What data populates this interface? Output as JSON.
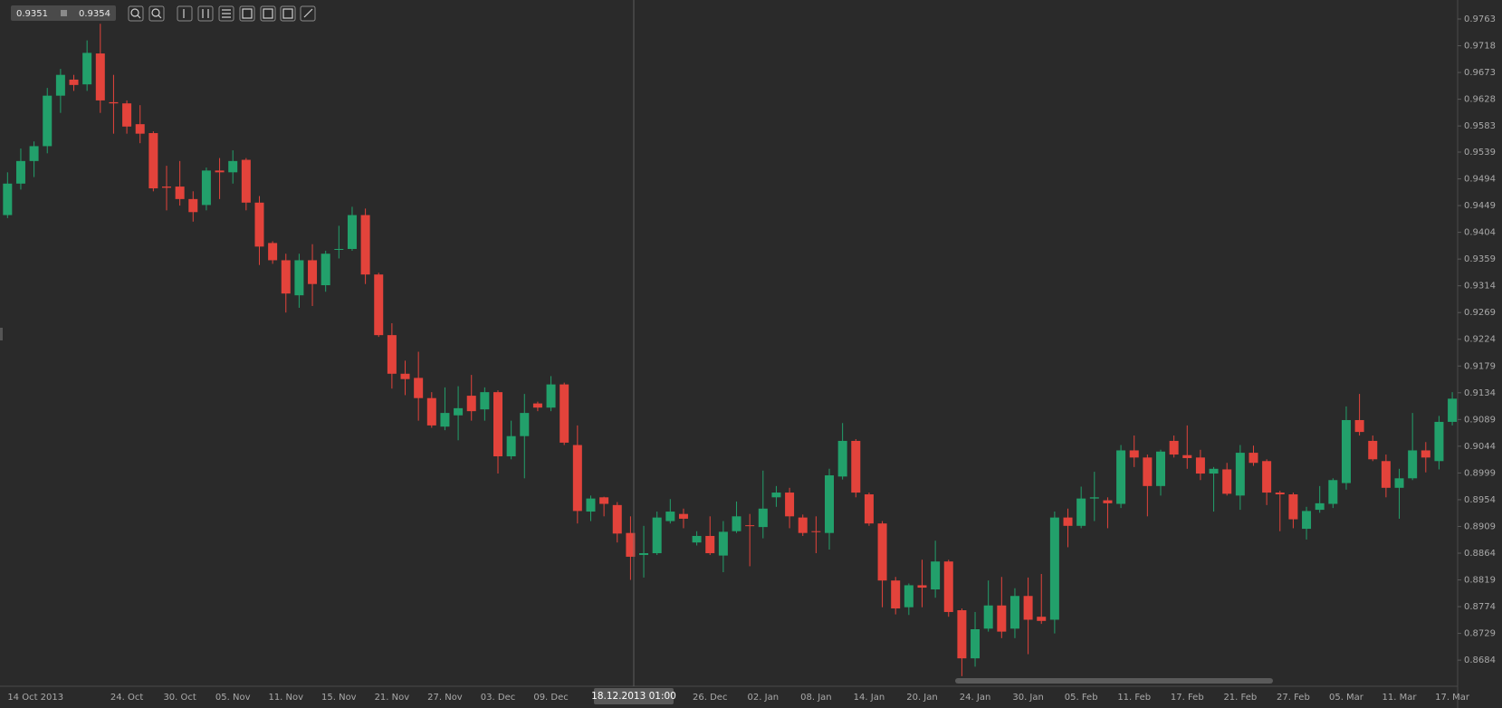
{
  "toolbar": {
    "bid": "0.9351",
    "ask": "0.9354"
  },
  "chart_data": {
    "type": "candlestick",
    "crosshair_label": "18.12.2013 01:00",
    "up_color": "#22a06b",
    "down_color": "#e3433b",
    "ylim": [
      0.864,
      0.9795
    ],
    "yticks": [
      0.9763,
      0.9718,
      0.9673,
      0.9628,
      0.9583,
      0.9539,
      0.9494,
      0.9449,
      0.9404,
      0.9359,
      0.9314,
      0.9269,
      0.9224,
      0.9179,
      0.9134,
      0.9089,
      0.9044,
      0.8999,
      0.8954,
      0.8909,
      0.8864,
      0.8819,
      0.8774,
      0.8729,
      0.8684
    ],
    "categories": [
      "14 Oct 2013",
      null,
      null,
      null,
      null,
      null,
      null,
      null,
      null,
      "24. Oct",
      null,
      null,
      null,
      "30. Oct",
      null,
      null,
      null,
      "05. Nov",
      null,
      null,
      null,
      "11. Nov",
      null,
      null,
      null,
      "15. Nov",
      null,
      null,
      null,
      "21. Nov",
      null,
      null,
      null,
      "27. Nov",
      null,
      null,
      null,
      "03. Dec",
      null,
      null,
      null,
      "09. Dec",
      null,
      null,
      null,
      null,
      null,
      null,
      null,
      null,
      null,
      null,
      null,
      "26. Dec",
      null,
      null,
      null,
      "02. Jan",
      null,
      null,
      null,
      "08. Jan",
      null,
      null,
      null,
      "14. Jan",
      null,
      null,
      null,
      "20. Jan",
      null,
      null,
      null,
      "24. Jan",
      null,
      null,
      null,
      "30. Jan",
      null,
      null,
      null,
      "05. Feb",
      null,
      null,
      null,
      "11. Feb",
      null,
      null,
      null,
      "17. Feb",
      null,
      null,
      null,
      "21. Feb",
      null,
      null,
      null,
      "27. Feb",
      null,
      null,
      null,
      "05. Mar",
      null,
      null,
      null,
      "11. Mar",
      null,
      null,
      null,
      "17. Mar"
    ],
    "open": [
      0.9433,
      0.9486,
      0.9524,
      0.9549,
      0.9634,
      0.9661,
      0.9653,
      0.9705,
      0.9623,
      0.9621,
      0.9586,
      0.9571,
      0.9481,
      0.9481,
      0.946,
      0.945,
      0.9508,
      0.9505,
      0.9526,
      0.9454,
      0.9386,
      0.9357,
      0.9298,
      0.9357,
      0.9315,
      0.9375,
      0.9376,
      0.9433,
      0.9333,
      0.9231,
      0.9166,
      0.9159,
      0.9125,
      0.9077,
      0.9096,
      0.9129,
      0.9106,
      0.9135,
      0.9027,
      0.9061,
      0.9116,
      0.9109,
      0.9148,
      0.9046,
      0.8934,
      0.8958,
      0.8945,
      0.8898,
      0.8861,
      0.8864,
      0.8918,
      0.893,
      0.8882,
      0.8893,
      0.886,
      0.8901,
      0.8911,
      0.8908,
      0.8958,
      0.8966,
      0.8924,
      0.8901,
      0.8898,
      0.8993,
      0.9053,
      0.8963,
      0.8914,
      0.8818,
      0.8773,
      0.881,
      0.8803,
      0.885,
      0.8768,
      0.8687,
      0.8737,
      0.8776,
      0.8737,
      0.8792,
      0.8757,
      0.8752,
      0.8924,
      0.891,
      0.8956,
      0.8953,
      0.8947,
      0.9037,
      0.9025,
      0.8977,
      0.9053,
      0.9029,
      0.9025,
      0.8998,
      0.9005,
      0.8961,
      0.9033,
      0.9019,
      0.8966,
      0.8963,
      0.8905,
      0.8937,
      0.8947,
      0.8982,
      0.9088,
      0.9053,
      0.9019,
      0.8974,
      0.899,
      0.9037,
      0.9019,
      0.9085
    ],
    "high": [
      0.9505,
      0.9545,
      0.9557,
      0.9647,
      0.9679,
      0.9669,
      0.9727,
      0.9755,
      0.9669,
      0.9626,
      0.9618,
      0.9574,
      0.9516,
      0.9524,
      0.9473,
      0.9513,
      0.9529,
      0.9542,
      0.9529,
      0.9465,
      0.9389,
      0.9368,
      0.9368,
      0.9384,
      0.9373,
      0.9415,
      0.9447,
      0.9444,
      0.9336,
      0.9251,
      0.9188,
      0.9203,
      0.9135,
      0.9143,
      0.9145,
      0.9164,
      0.9143,
      0.9138,
      0.9087,
      0.9132,
      0.9119,
      0.9162,
      0.9151,
      0.9079,
      0.8961,
      0.8959,
      0.895,
      0.8926,
      0.891,
      0.8934,
      0.8955,
      0.8939,
      0.8901,
      0.8926,
      0.8918,
      0.8951,
      0.893,
      0.9003,
      0.8977,
      0.8974,
      0.8929,
      0.8926,
      0.9006,
      0.9083,
      0.9056,
      0.8966,
      0.8918,
      0.8824,
      0.8813,
      0.8853,
      0.8885,
      0.8853,
      0.8771,
      0.8765,
      0.8818,
      0.8824,
      0.8805,
      0.8823,
      0.8829,
      0.8934,
      0.8939,
      0.8976,
      0.9001,
      0.8958,
      0.9046,
      0.9062,
      0.903,
      0.9038,
      0.9062,
      0.9079,
      0.9038,
      0.9009,
      0.9016,
      0.9046,
      0.9045,
      0.9022,
      0.8969,
      0.8966,
      0.8942,
      0.8977,
      0.899,
      0.9111,
      0.9132,
      0.9062,
      0.903,
      0.9006,
      0.91,
      0.9051,
      0.9095,
      0.9135
    ],
    "low": [
      0.9428,
      0.9476,
      0.9497,
      0.9537,
      0.9605,
      0.9642,
      0.9642,
      0.9605,
      0.957,
      0.957,
      0.9554,
      0.9473,
      0.9441,
      0.9449,
      0.9422,
      0.9441,
      0.946,
      0.9486,
      0.9441,
      0.9349,
      0.9351,
      0.9269,
      0.9277,
      0.928,
      0.9304,
      0.936,
      0.9373,
      0.9317,
      0.9228,
      0.9141,
      0.913,
      0.9087,
      0.9075,
      0.9071,
      0.9054,
      0.9087,
      0.9087,
      0.8998,
      0.9022,
      0.899,
      0.9103,
      0.9103,
      0.9046,
      0.8914,
      0.8918,
      0.8926,
      0.8882,
      0.8819,
      0.8823,
      0.8861,
      0.8914,
      0.8906,
      0.8877,
      0.8861,
      0.8832,
      0.8898,
      0.8842,
      0.8889,
      0.8942,
      0.8906,
      0.8893,
      0.8864,
      0.887,
      0.8988,
      0.8958,
      0.891,
      0.8773,
      0.8761,
      0.876,
      0.8773,
      0.8789,
      0.8757,
      0.8657,
      0.8673,
      0.8732,
      0.8721,
      0.8721,
      0.8694,
      0.8745,
      0.8729,
      0.8874,
      0.8906,
      0.8918,
      0.8906,
      0.894,
      0.9009,
      0.8926,
      0.8961,
      0.9025,
      0.9006,
      0.8987,
      0.8934,
      0.8961,
      0.8937,
      0.9011,
      0.8945,
      0.8901,
      0.8906,
      0.8887,
      0.8932,
      0.894,
      0.8971,
      0.9062,
      0.9019,
      0.8958,
      0.8922,
      0.8987,
      0.9,
      0.9005,
      0.9079
    ],
    "close": [
      0.9486,
      0.9524,
      0.9549,
      0.9634,
      0.9669,
      0.9652,
      0.9706,
      0.9626,
      0.9621,
      0.9582,
      0.957,
      0.9478,
      0.9479,
      0.946,
      0.9438,
      0.9508,
      0.9505,
      0.9524,
      0.9454,
      0.938,
      0.9357,
      0.9301,
      0.9357,
      0.9317,
      0.9368,
      0.9376,
      0.9433,
      0.9333,
      0.9231,
      0.9166,
      0.9157,
      0.9125,
      0.9079,
      0.91,
      0.9108,
      0.9103,
      0.9135,
      0.9027,
      0.9061,
      0.91,
      0.9109,
      0.9148,
      0.905,
      0.8935,
      0.8956,
      0.8947,
      0.8897,
      0.8858,
      0.8864,
      0.8924,
      0.8934,
      0.8922,
      0.8893,
      0.8864,
      0.89,
      0.8926,
      0.891,
      0.8939,
      0.8966,
      0.8926,
      0.8898,
      0.89,
      0.8995,
      0.9053,
      0.8966,
      0.8914,
      0.8818,
      0.8771,
      0.881,
      0.8806,
      0.885,
      0.8765,
      0.8687,
      0.8736,
      0.8776,
      0.8732,
      0.8792,
      0.8752,
      0.875,
      0.8924,
      0.891,
      0.8956,
      0.8958,
      0.8948,
      0.9037,
      0.9025,
      0.8977,
      0.9035,
      0.903,
      0.9024,
      0.8998,
      0.9006,
      0.8964,
      0.9033,
      0.9016,
      0.8966,
      0.8963,
      0.8921,
      0.8935,
      0.8948,
      0.8987,
      0.9088,
      0.9068,
      0.9022,
      0.8974,
      0.899,
      0.9037,
      0.9025,
      0.9085,
      0.9124
    ]
  }
}
